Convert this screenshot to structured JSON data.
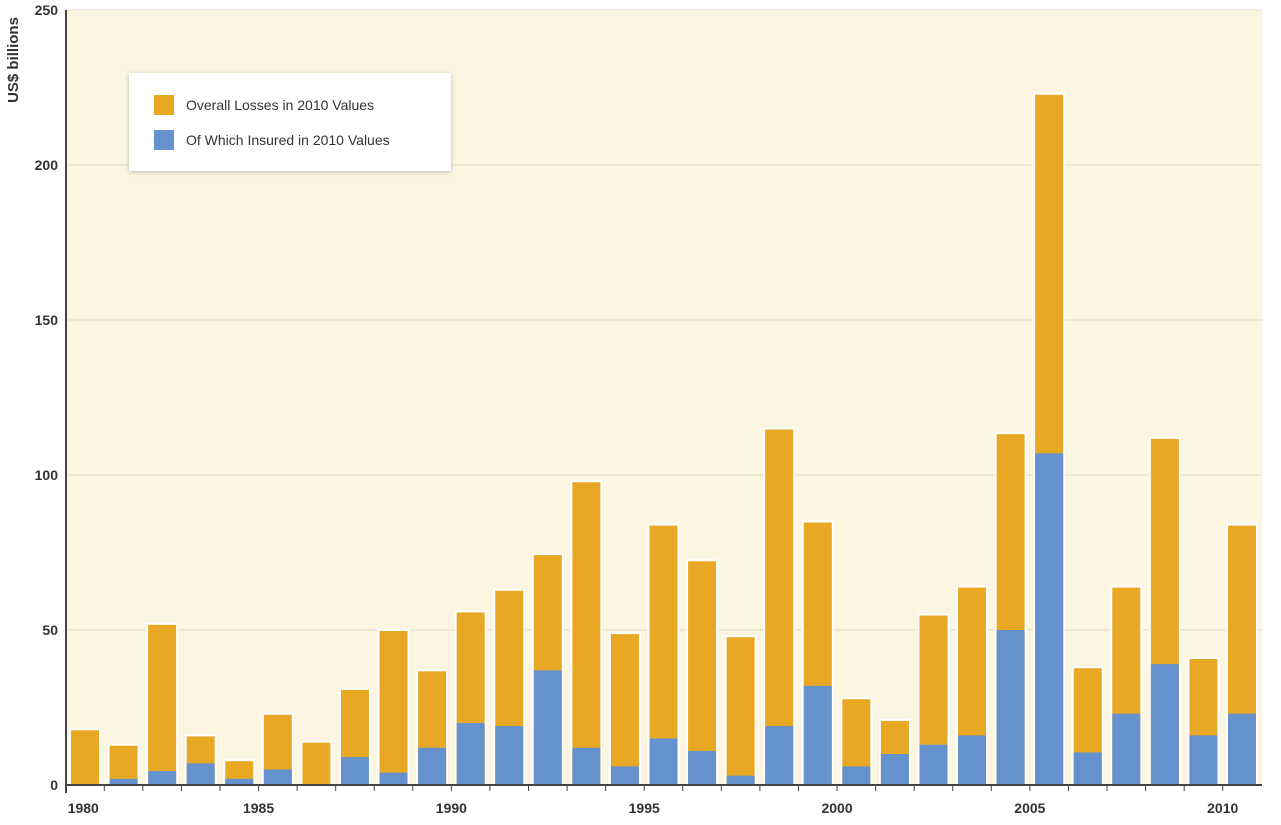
{
  "chart_data": {
    "type": "bar",
    "stacked": "overlay",
    "title": "",
    "xlabel": "",
    "ylabel": "US$ billions",
    "ylim": [
      0,
      250
    ],
    "yticks": [
      "0",
      "50",
      "100",
      "150",
      "200",
      "250"
    ],
    "xtick_labels": [
      "1980",
      "1985",
      "1990",
      "1995",
      "2000",
      "2005",
      "2010"
    ],
    "grid": true,
    "legend_position": "top-left",
    "categories": [
      1980,
      1981,
      1982,
      1983,
      1984,
      1985,
      1986,
      1987,
      1988,
      1989,
      1990,
      1991,
      1992,
      1993,
      1994,
      1995,
      1996,
      1997,
      1998,
      1999,
      2000,
      2001,
      2002,
      2003,
      2004,
      2005,
      2006,
      2007,
      2008,
      2009,
      2010
    ],
    "series": [
      {
        "name": "Overall Losses in 2010 Values",
        "color": "#e8a823",
        "values": [
          18,
          13,
          52,
          16,
          8,
          23,
          14,
          31,
          50,
          37,
          56,
          63,
          74.5,
          98,
          49,
          84,
          72.5,
          48,
          115,
          85,
          28,
          21,
          55,
          64,
          113.5,
          223,
          38,
          64,
          112,
          41,
          84
        ]
      },
      {
        "name": "Of Which Insured in 2010 Values",
        "color": "#6592cc",
        "values": [
          0.3,
          2,
          4.5,
          7,
          2,
          5,
          0.3,
          9,
          4,
          12,
          20,
          19,
          37,
          12,
          6,
          15,
          11,
          3,
          19,
          32,
          6,
          10,
          13,
          16,
          50,
          107,
          10.5,
          23,
          39,
          16,
          23
        ]
      }
    ]
  }
}
